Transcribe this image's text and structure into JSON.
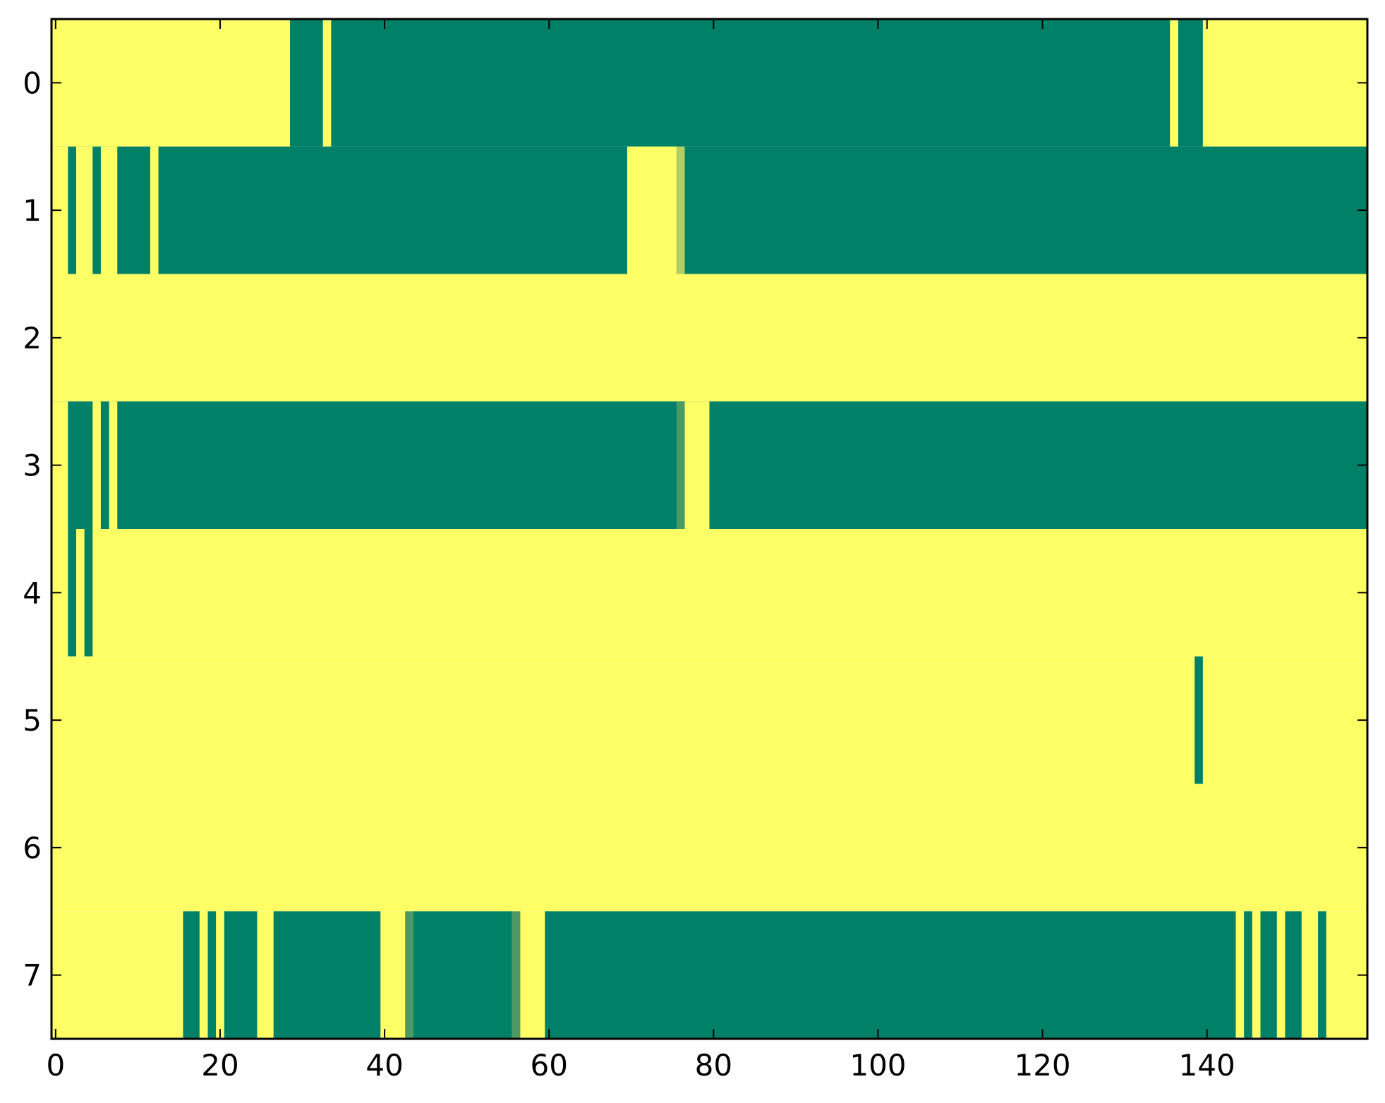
{
  "chart_data": {
    "type": "heatmap",
    "title": "",
    "xlabel": "",
    "ylabel": "",
    "xlim": [
      -0.5,
      159.5
    ],
    "ylim": [
      7.5,
      -0.5
    ],
    "x_ticks": [
      0,
      20,
      40,
      60,
      80,
      100,
      120,
      140
    ],
    "y_ticks": [
      0,
      1,
      2,
      3,
      4,
      5,
      6,
      7
    ],
    "grid": false,
    "legend": "none",
    "colors": {
      "high": "#ffff66",
      "low": "#008066",
      "mid": "#4d9966",
      "mid_light": "#b3cc66",
      "axis": "#000000"
    },
    "n_columns": 160,
    "n_rows": 8,
    "rows": [
      {
        "row": 0,
        "background": "high",
        "segments": [
          {
            "start": 29,
            "end": 32,
            "value": "low"
          },
          {
            "start": 34,
            "end": 135,
            "value": "low"
          },
          {
            "start": 137,
            "end": 139,
            "value": "low"
          }
        ]
      },
      {
        "row": 1,
        "background": "low",
        "segments": [
          {
            "start": 0,
            "end": 1,
            "value": "high"
          },
          {
            "start": 3,
            "end": 4,
            "value": "high"
          },
          {
            "start": 6,
            "end": 7,
            "value": "high"
          },
          {
            "start": 12,
            "end": 12,
            "value": "high"
          },
          {
            "start": 70,
            "end": 75,
            "value": "high"
          },
          {
            "start": 76,
            "end": 76,
            "value": "mid_light"
          }
        ]
      },
      {
        "row": 2,
        "background": "high",
        "segments": []
      },
      {
        "row": 3,
        "background": "low",
        "segments": [
          {
            "start": 0,
            "end": 1,
            "value": "high"
          },
          {
            "start": 5,
            "end": 5,
            "value": "high"
          },
          {
            "start": 7,
            "end": 7,
            "value": "high"
          },
          {
            "start": 76,
            "end": 76,
            "value": "mid"
          },
          {
            "start": 77,
            "end": 79,
            "value": "high"
          }
        ]
      },
      {
        "row": 4,
        "background": "high",
        "segments": [
          {
            "start": 2,
            "end": 2,
            "value": "low"
          },
          {
            "start": 4,
            "end": 4,
            "value": "low"
          }
        ]
      },
      {
        "row": 5,
        "background": "high",
        "segments": [
          {
            "start": 139,
            "end": 139,
            "value": "low"
          }
        ]
      },
      {
        "row": 6,
        "background": "high",
        "segments": []
      },
      {
        "row": 7,
        "background": "high",
        "segments": [
          {
            "start": 16,
            "end": 17,
            "value": "low"
          },
          {
            "start": 19,
            "end": 19,
            "value": "low"
          },
          {
            "start": 21,
            "end": 24,
            "value": "low"
          },
          {
            "start": 27,
            "end": 39,
            "value": "low"
          },
          {
            "start": 43,
            "end": 43,
            "value": "mid"
          },
          {
            "start": 44,
            "end": 55,
            "value": "low"
          },
          {
            "start": 56,
            "end": 56,
            "value": "mid"
          },
          {
            "start": 60,
            "end": 143,
            "value": "low"
          },
          {
            "start": 145,
            "end": 145,
            "value": "low"
          },
          {
            "start": 147,
            "end": 148,
            "value": "low"
          },
          {
            "start": 150,
            "end": 151,
            "value": "low"
          },
          {
            "start": 154,
            "end": 154,
            "value": "low"
          }
        ]
      }
    ]
  }
}
